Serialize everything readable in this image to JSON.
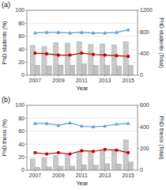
{
  "chart_data": [
    {
      "type": "bar",
      "title": "(a)",
      "x": [
        2007,
        2008,
        2009,
        2010,
        2011,
        2012,
        2013,
        2014,
        2015
      ],
      "xlim": [
        2006.3,
        2015.8
      ],
      "xticks": [
        2007,
        2009,
        2011,
        2013,
        2015
      ],
      "xlabel": "Year",
      "ylabel": "PhD students (%)",
      "y2label": "PhD students (Total)",
      "ylim": [
        0,
        100
      ],
      "yticks": [
        0,
        20,
        40,
        60,
        80,
        100
      ],
      "y2lim": [
        0,
        1200
      ],
      "y2ticks": [
        0,
        400,
        800,
        1200
      ],
      "grid": true,
      "series": [
        {
          "type": "bar",
          "axis": "y2",
          "color": "#d0d0d0",
          "values": [
            550,
            530,
            600,
            590,
            620,
            570,
            580,
            560,
            620
          ]
        },
        {
          "type": "bar",
          "axis": "y2",
          "color": "#c0c0c0",
          "values": [
            185,
            175,
            190,
            185,
            210,
            185,
            180,
            170,
            180
          ]
        },
        {
          "type": "line",
          "color": "#5b9bd5",
          "marker": "triangle",
          "values": [
            65,
            66,
            66,
            65,
            66,
            65,
            65,
            66,
            70
          ]
        },
        {
          "type": "line",
          "color": "#c00000",
          "marker": "square",
          "values": [
            34,
            33,
            31,
            31,
            34,
            32,
            31,
            30,
            29
          ]
        }
      ]
    },
    {
      "type": "bar",
      "title": "(b)",
      "x": [
        2007,
        2008,
        2009,
        2010,
        2011,
        2012,
        2013,
        2014,
        2015
      ],
      "xlim": [
        2006.3,
        2015.8
      ],
      "xticks": [
        2007,
        2009,
        2011,
        2013,
        2015
      ],
      "xlabel": "Year",
      "ylabel": "PhD thesis (%)",
      "y2label": "PhD thesis (Total)",
      "ylim": [
        0,
        100
      ],
      "yticks": [
        0,
        20,
        40,
        60,
        80,
        100
      ],
      "y2lim": [
        0,
        600
      ],
      "y2ticks": [
        0,
        200,
        400,
        600
      ],
      "grid": true,
      "series": [
        {
          "type": "bar",
          "axis": "y2",
          "color": "#d0d0d0",
          "values": [
            105,
            120,
            135,
            150,
            165,
            165,
            185,
            185,
            280
          ]
        },
        {
          "type": "bar",
          "axis": "y2",
          "color": "#c0c0c0",
          "values": [
            28,
            30,
            37,
            38,
            50,
            48,
            60,
            57,
            75
          ]
        },
        {
          "type": "line",
          "color": "#5b9bd5",
          "marker": "triangle",
          "values": [
            72,
            72,
            69,
            73,
            68,
            67,
            68,
            71,
            72
          ]
        },
        {
          "type": "line",
          "color": "#c00000",
          "marker": "square",
          "values": [
            27,
            25,
            27,
            25,
            30,
            29,
            32,
            31,
            27
          ]
        }
      ]
    }
  ]
}
